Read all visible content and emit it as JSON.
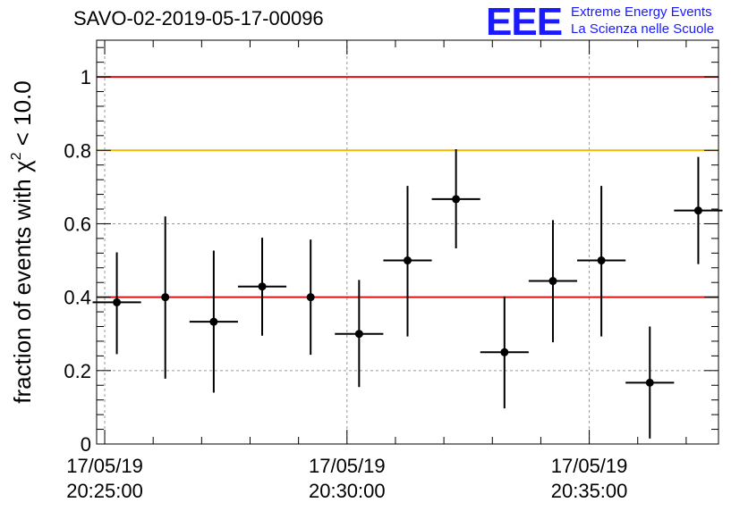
{
  "header": {
    "title": "SAVO-02-2019-05-17-00096"
  },
  "logo": {
    "mark": "EEE",
    "line1": "Extreme Energy Events",
    "line2": "La Scienza nelle Scuole",
    "color": "#1a1aff"
  },
  "chart_data": {
    "type": "scatter",
    "ylabel_prefix": "fraction of events with ",
    "ylabel_chi": "χ",
    "ylabel_sup": "2",
    "ylabel_suffix": " < 10.0",
    "ylim": [
      0,
      1.1
    ],
    "yticks": [
      0,
      0.2,
      0.4,
      0.6,
      0.8,
      1
    ],
    "ytick_labels": [
      "0",
      "0.2",
      "0.4",
      "0.6",
      "0.8",
      "1"
    ],
    "xlim": [
      "20:24:50",
      "20:37:40"
    ],
    "xticks": [
      {
        "time": "20:25:00",
        "date": "17/05/19",
        "clock": "20:25:00"
      },
      {
        "time": "20:30:00",
        "date": "17/05/19",
        "clock": "20:30:00"
      },
      {
        "time": "20:35:00",
        "date": "17/05/19",
        "clock": "20:35:00"
      }
    ],
    "grid": true,
    "reference_lines": [
      {
        "y": 1.0,
        "color": "#e01010"
      },
      {
        "y": 0.8,
        "color": "#f5b800"
      },
      {
        "y": 0.4,
        "color": "#e01010"
      }
    ],
    "points": [
      {
        "x": "20:25:15",
        "y": 0.386,
        "x_err": "00:00:30",
        "y_low": 0.245,
        "y_high": 0.522
      },
      {
        "x": "20:26:15",
        "y": 0.4,
        "x_err": "00:00:00",
        "y_low": 0.178,
        "y_high": 0.62
      },
      {
        "x": "20:27:15",
        "y": 0.333,
        "x_err": "00:00:30",
        "y_low": 0.14,
        "y_high": 0.527
      },
      {
        "x": "20:28:15",
        "y": 0.429,
        "x_err": "00:00:30",
        "y_low": 0.295,
        "y_high": 0.562
      },
      {
        "x": "20:29:15",
        "y": 0.4,
        "x_err": "00:00:00",
        "y_low": 0.243,
        "y_high": 0.557
      },
      {
        "x": "20:30:15",
        "y": 0.3,
        "x_err": "00:00:30",
        "y_low": 0.155,
        "y_high": 0.447
      },
      {
        "x": "20:31:15",
        "y": 0.5,
        "x_err": "00:00:30",
        "y_low": 0.293,
        "y_high": 0.703
      },
      {
        "x": "20:32:15",
        "y": 0.667,
        "x_err": "00:00:30",
        "y_low": 0.533,
        "y_high": 0.803
      },
      {
        "x": "20:33:15",
        "y": 0.25,
        "x_err": "00:00:30",
        "y_low": 0.097,
        "y_high": 0.402
      },
      {
        "x": "20:34:15",
        "y": 0.444,
        "x_err": "00:00:30",
        "y_low": 0.277,
        "y_high": 0.61
      },
      {
        "x": "20:35:15",
        "y": 0.5,
        "x_err": "00:00:30",
        "y_low": 0.293,
        "y_high": 0.703
      },
      {
        "x": "20:36:15",
        "y": 0.167,
        "x_err": "00:00:30",
        "y_low": 0.015,
        "y_high": 0.32
      },
      {
        "x": "20:37:15",
        "y": 0.636,
        "x_err": "00:00:30",
        "y_low": 0.49,
        "y_high": 0.782
      }
    ]
  }
}
